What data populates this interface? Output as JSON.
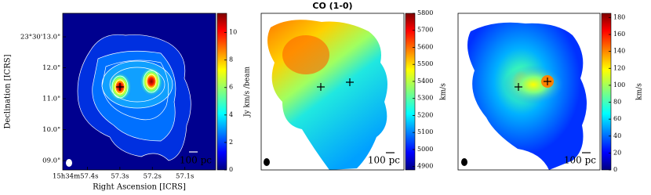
{
  "chart_data": [
    {
      "type": "map",
      "xlabel": "Right Ascension [ICRS]",
      "ylabel": "Declination [ICRS]",
      "xlim": [
        57.476,
        57.005
      ],
      "xticks": [
        {
          "value": 57.4,
          "label": "15h34m57.4s"
        },
        {
          "value": 57.3,
          "label": "57.3s"
        },
        {
          "value": 57.2,
          "label": "57.2s"
        },
        {
          "value": 57.1,
          "label": "57.1s"
        }
      ],
      "ylim": [
        8.7,
        13.76
      ],
      "yticks": [
        {
          "value": 13.0,
          "label": "23°30'13.0\""
        },
        {
          "value": 12.0,
          "label": "12.0\""
        },
        {
          "value": 11.0,
          "label": "11.0\""
        },
        {
          "value": 10.0,
          "label": "10.0\""
        },
        {
          "value": 9.0,
          "label": "09.0\""
        }
      ],
      "colorbar_label": "Jy km/s /beam",
      "clim": [
        0,
        11.4
      ],
      "cticks": [
        0,
        2,
        4,
        6,
        8,
        10
      ],
      "scale_bar": "100 pc",
      "colormap": "jet"
    },
    {
      "type": "map",
      "title": "CO (1-0)",
      "colorbar_label": "km/s",
      "clim": [
        4880,
        5800
      ],
      "cticks": [
        4900,
        5000,
        5100,
        5200,
        5300,
        5400,
        5500,
        5600,
        5700,
        5800
      ],
      "scale_bar": "100 pc",
      "colormap": "jet"
    },
    {
      "type": "map",
      "colorbar_label": "km/s",
      "clim": [
        0,
        185
      ],
      "cticks": [
        0,
        20,
        40,
        60,
        80,
        100,
        120,
        140,
        160,
        180
      ],
      "scale_bar": "100 pc",
      "colormap": "jet"
    }
  ]
}
